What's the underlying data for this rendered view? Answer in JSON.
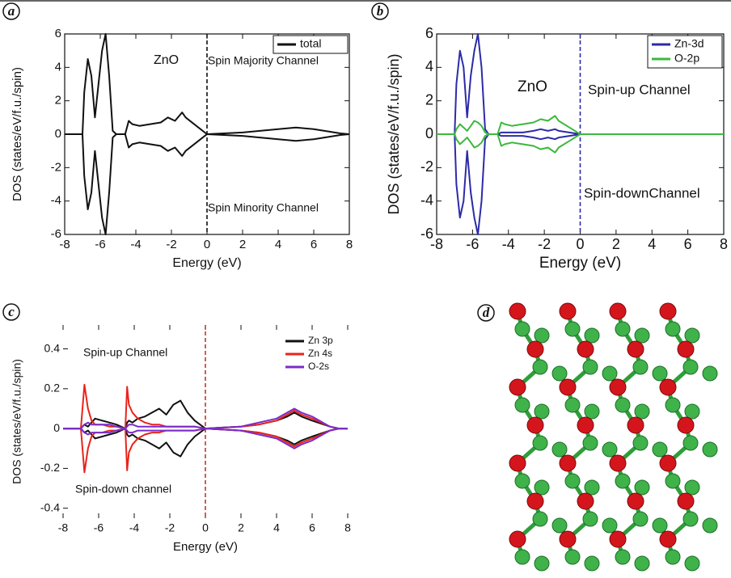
{
  "chart_data": [
    {
      "type": "line",
      "label": "a",
      "xlabel": "Energy (eV)",
      "ylabel": "DOS (states/eV/f.u./spin)",
      "x": [
        -8,
        -7,
        -6.9,
        -6.7,
        -6.5,
        -6.3,
        -6.1,
        -5.9,
        -5.7,
        -5.5,
        -5.3,
        -5.1,
        -4.6,
        -4.4,
        -4.2,
        -3.8,
        -3.2,
        -2.6,
        -2.2,
        -1.8,
        -1.4,
        -1.2,
        -0.6,
        0,
        2,
        4,
        5,
        6,
        7.5,
        8
      ],
      "series": [
        {
          "name": "total",
          "color": "#111111",
          "values": [
            0,
            0,
            2.5,
            4.5,
            3.5,
            1,
            3,
            5,
            6,
            3.5,
            0.2,
            0,
            0,
            0.8,
            0.6,
            0.5,
            0.6,
            0.7,
            1,
            0.8,
            1.3,
            1,
            0.5,
            0,
            0.1,
            0.3,
            0.4,
            0.3,
            0.05,
            0
          ],
          "down_values": [
            0,
            0,
            -2.5,
            -4.5,
            -3.5,
            -1,
            -3,
            -5,
            -6,
            -3.5,
            -0.2,
            0,
            0,
            -0.8,
            -0.6,
            -0.5,
            -0.6,
            -0.7,
            -1,
            -0.8,
            -1.3,
            -1,
            -0.5,
            0,
            -0.1,
            -0.3,
            -0.4,
            -0.3,
            -0.05,
            0
          ]
        }
      ],
      "annotations": [
        "ZnO",
        "Spin Majority Channel",
        "Spin Minority Channel"
      ],
      "fermi_line": {
        "x": 0,
        "color": "#111111"
      },
      "xlim": [
        -8,
        8
      ],
      "ylim": [
        -6,
        6
      ],
      "xticks": [
        -8,
        -6,
        -4,
        -2,
        0,
        2,
        4,
        6,
        8
      ],
      "yticks": [
        -6,
        -4,
        -2,
        0,
        2,
        4,
        6
      ],
      "frame": true,
      "legend": "upper right"
    },
    {
      "type": "line",
      "label": "b",
      "xlabel": "Energy (eV)",
      "ylabel": "DOS (states/eV/f.u./spin)",
      "x": [
        -8,
        -7,
        -6.9,
        -6.7,
        -6.5,
        -6.3,
        -6.1,
        -5.9,
        -5.7,
        -5.5,
        -5.3,
        -5.1,
        -4.6,
        -4.4,
        -4.2,
        -3.8,
        -3.2,
        -2.6,
        -2.2,
        -1.8,
        -1.4,
        -1.2,
        -0.6,
        0,
        2,
        4,
        5,
        6,
        7.5,
        8
      ],
      "series": [
        {
          "name": "Zn-3d",
          "color": "#2b2ba8",
          "values": [
            0,
            0,
            3,
            5,
            4,
            1,
            3.5,
            5,
            6,
            4,
            0.3,
            0,
            0,
            0.1,
            0.1,
            0.1,
            0.1,
            0.2,
            0.3,
            0.2,
            0.3,
            0.2,
            0.1,
            0,
            0,
            0,
            0,
            0,
            0,
            0
          ],
          "down_values": [
            0,
            0,
            -3,
            -5,
            -4,
            -1,
            -3.5,
            -5,
            -6,
            -4,
            -0.3,
            0,
            0,
            -0.1,
            -0.1,
            -0.1,
            -0.1,
            -0.2,
            -0.3,
            -0.2,
            -0.3,
            -0.2,
            -0.1,
            0,
            0,
            0,
            0,
            0,
            0,
            0
          ]
        },
        {
          "name": "O-2p",
          "color": "#3cb83c",
          "values": [
            0,
            0,
            0.3,
            0.6,
            0.4,
            0.2,
            0.5,
            0.8,
            0.7,
            0.5,
            0.1,
            0,
            0,
            0.7,
            0.6,
            0.5,
            0.6,
            0.7,
            0.9,
            0.8,
            1.1,
            0.8,
            0.4,
            0,
            0,
            0,
            0,
            0,
            0,
            0
          ],
          "down_values": [
            0,
            0,
            -0.3,
            -0.6,
            -0.4,
            -0.2,
            -0.5,
            -0.8,
            -0.7,
            -0.5,
            -0.1,
            0,
            0,
            -0.7,
            -0.6,
            -0.5,
            -0.6,
            -0.7,
            -0.9,
            -0.8,
            -1.1,
            -0.8,
            -0.4,
            0,
            0,
            0,
            0,
            0,
            0,
            0
          ]
        }
      ],
      "annotations": [
        "ZnO",
        "Spin-up Channel",
        "Spin-downChannel"
      ],
      "fermi_line": {
        "x": 0,
        "color": "#2b2ba8"
      },
      "xlim": [
        -8,
        8
      ],
      "ylim": [
        -6,
        6
      ],
      "xticks": [
        -8,
        -6,
        -4,
        -2,
        0,
        2,
        4,
        6,
        8
      ],
      "yticks": [
        -6,
        -4,
        -2,
        0,
        2,
        4,
        6
      ],
      "frame": true,
      "legend": "upper right"
    },
    {
      "type": "line",
      "label": "c",
      "xlabel": "Energy (eV)",
      "ylabel": "DOS (states/eV/f.u./spin)",
      "x": [
        -8,
        -7,
        -6.8,
        -6.6,
        -6.4,
        -6.2,
        -5.8,
        -5.4,
        -5,
        -4.5,
        -4.4,
        -4.3,
        -4.1,
        -3.8,
        -3.4,
        -3,
        -2.6,
        -2.2,
        -1.8,
        -1.4,
        -1,
        -0.6,
        0,
        1,
        2,
        3,
        4,
        4.6,
        5,
        5.4,
        6,
        7,
        7.5,
        8
      ],
      "series": [
        {
          "name": "Zn 3p",
          "color": "#111111",
          "values": [
            0,
            0,
            0.02,
            0.01,
            0.03,
            0.05,
            0.04,
            0.03,
            0.02,
            0,
            0.03,
            0.04,
            0.03,
            0.05,
            0.06,
            0.08,
            0.1,
            0.07,
            0.12,
            0.14,
            0.08,
            0.04,
            0,
            0.005,
            0.01,
            0.02,
            0.04,
            0.06,
            0.08,
            0.06,
            0.04,
            0.01,
            0,
            0
          ],
          "down_values": [
            0,
            0,
            -0.02,
            -0.01,
            -0.03,
            -0.05,
            -0.04,
            -0.03,
            -0.02,
            0,
            -0.03,
            -0.04,
            -0.03,
            -0.05,
            -0.06,
            -0.08,
            -0.1,
            -0.07,
            -0.12,
            -0.14,
            -0.08,
            -0.04,
            0,
            -0.005,
            -0.01,
            -0.02,
            -0.04,
            -0.06,
            -0.08,
            -0.06,
            -0.04,
            -0.01,
            0,
            0
          ]
        },
        {
          "name": "Zn 4s",
          "color": "#e8241c",
          "values": [
            0,
            0,
            0.22,
            0.1,
            0.04,
            0.02,
            0.02,
            0.01,
            0.01,
            0,
            0.21,
            0.12,
            0.08,
            0.05,
            0.03,
            0.02,
            0.02,
            0.01,
            0.01,
            0.01,
            0.01,
            0.01,
            0,
            0.005,
            0.01,
            0.02,
            0.04,
            0.07,
            0.09,
            0.07,
            0.05,
            0.01,
            0,
            0
          ],
          "down_values": [
            0,
            0,
            -0.22,
            -0.1,
            -0.04,
            -0.02,
            -0.02,
            -0.01,
            -0.01,
            0,
            -0.21,
            -0.12,
            -0.08,
            -0.05,
            -0.03,
            -0.02,
            -0.02,
            -0.01,
            -0.01,
            -0.01,
            -0.01,
            -0.01,
            0,
            -0.005,
            -0.01,
            -0.02,
            -0.04,
            -0.07,
            -0.09,
            -0.07,
            -0.05,
            -0.01,
            0,
            0
          ]
        },
        {
          "name": "O-2s",
          "color": "#7a2cc8",
          "values": [
            0,
            0,
            0.02,
            0.03,
            0.02,
            0.02,
            0.02,
            0.02,
            0.01,
            0,
            0.01,
            0.02,
            0.02,
            0.01,
            0.01,
            0.01,
            0.01,
            0.01,
            0.01,
            0.01,
            0.01,
            0.01,
            0,
            0.005,
            0.01,
            0.03,
            0.05,
            0.08,
            0.1,
            0.08,
            0.06,
            0.01,
            0,
            0
          ],
          "down_values": [
            0,
            0,
            -0.02,
            -0.03,
            -0.02,
            -0.02,
            -0.02,
            -0.02,
            -0.01,
            0,
            -0.01,
            -0.02,
            -0.02,
            -0.01,
            -0.01,
            -0.01,
            -0.01,
            -0.01,
            -0.01,
            -0.01,
            -0.01,
            -0.01,
            0,
            -0.005,
            -0.01,
            -0.03,
            -0.05,
            -0.08,
            -0.1,
            -0.08,
            -0.06,
            -0.01,
            0,
            0
          ]
        }
      ],
      "annotations": [
        "Spin-up Channel",
        "Spin-down channel"
      ],
      "fermi_line": {
        "x": 0,
        "color": "#c0392b"
      },
      "xlim": [
        -8,
        8
      ],
      "ylim": [
        -0.45,
        0.52
      ],
      "xticks": [
        -8,
        -6,
        -4,
        -2,
        0,
        2,
        4,
        6,
        8
      ],
      "yticks": [
        -0.4,
        -0.2,
        0,
        0.2,
        0.4
      ],
      "frame": false,
      "legend": "upper right"
    }
  ],
  "structure": {
    "label": "d"
  }
}
